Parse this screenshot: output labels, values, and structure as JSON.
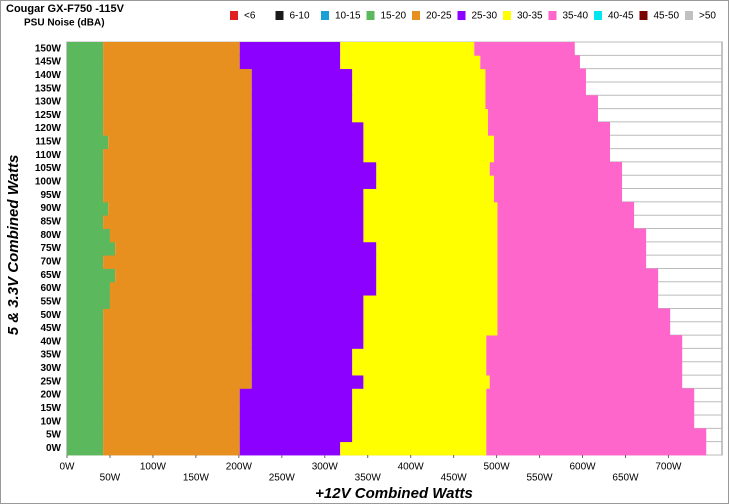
{
  "chart_data": {
    "type": "stacked-bar-horizontal",
    "title": "Cougar GX-F750 -115V",
    "subtitle": "PSU Noise (dBA)",
    "x_label": "+12V Combined Watts",
    "y_label": "5 & 3.3V Combined Watts",
    "categories": [
      "0W",
      "5W",
      "10W",
      "15W",
      "20W",
      "25W",
      "30W",
      "35W",
      "40W",
      "45W",
      "50W",
      "55W",
      "60W",
      "65W",
      "70W",
      "75W",
      "80W",
      "85W",
      "90W",
      "95W",
      "100W",
      "105W",
      "110W",
      "115W",
      "120W",
      "125W",
      "130W",
      "135W",
      "140W",
      "145W",
      "150W"
    ],
    "xlim": [
      0,
      760
    ],
    "xticks": [
      {
        "value": 0,
        "label": "0W"
      },
      {
        "value": 50,
        "label": "50W"
      },
      {
        "value": 100,
        "label": "100W"
      },
      {
        "value": 150,
        "label": "150W"
      },
      {
        "value": 200,
        "label": "200W"
      },
      {
        "value": 250,
        "label": "250W"
      },
      {
        "value": 300,
        "label": "300W"
      },
      {
        "value": 350,
        "label": "350W"
      },
      {
        "value": 400,
        "label": "400W"
      },
      {
        "value": 450,
        "label": "450W"
      },
      {
        "value": 500,
        "label": "500W"
      },
      {
        "value": 550,
        "label": "550W"
      },
      {
        "value": 600,
        "label": "600W"
      },
      {
        "value": 650,
        "label": "650W"
      },
      {
        "value": 700,
        "label": "700W"
      }
    ],
    "series": [
      {
        "name": "<6",
        "color": "#e02020",
        "values": [
          null,
          null,
          null,
          null,
          null,
          null,
          null,
          null,
          null,
          null,
          null,
          null,
          null,
          null,
          null,
          null,
          null,
          null,
          null,
          null,
          null,
          null,
          null,
          null,
          null,
          null,
          null,
          null,
          null,
          null,
          null
        ]
      },
      {
        "name": "6-10",
        "color": "#1a1a1a",
        "values": [
          null,
          null,
          null,
          null,
          null,
          null,
          null,
          null,
          null,
          null,
          null,
          null,
          null,
          null,
          null,
          null,
          null,
          null,
          null,
          null,
          null,
          null,
          null,
          null,
          null,
          null,
          null,
          null,
          null,
          null,
          null
        ]
      },
      {
        "name": "10-15",
        "color": "#1a9fd8",
        "values": [
          null,
          null,
          null,
          null,
          null,
          null,
          null,
          null,
          null,
          null,
          null,
          null,
          null,
          null,
          null,
          null,
          null,
          null,
          null,
          null,
          null,
          null,
          null,
          null,
          null,
          null,
          null,
          null,
          null,
          null,
          null
        ]
      },
      {
        "name": "15-20",
        "color": "#5cb85c",
        "values": [
          42,
          42,
          42,
          42,
          42,
          42,
          42,
          42,
          42,
          42,
          42,
          50,
          50,
          56,
          42,
          56,
          50,
          42,
          48,
          42,
          42,
          42,
          42,
          48,
          42,
          42,
          42,
          42,
          42,
          42,
          42
        ]
      },
      {
        "name": "20-25",
        "color": "#e8901f",
        "values": [
          159,
          159,
          159,
          159,
          159,
          173,
          173,
          173,
          173,
          173,
          173,
          165,
          165,
          159,
          173,
          159,
          165,
          173,
          167,
          173,
          173,
          173,
          173,
          167,
          173,
          173,
          173,
          173,
          173,
          159,
          159
        ]
      },
      {
        "name": "25-30",
        "color": "#8b00ff",
        "values": [
          117,
          131,
          131,
          131,
          131,
          130,
          117,
          117,
          130,
          130,
          130,
          130,
          145,
          145,
          145,
          145,
          130,
          130,
          130,
          130,
          145,
          145,
          130,
          130,
          130,
          117,
          117,
          117,
          117,
          117,
          117
        ]
      },
      {
        "name": "30-35",
        "color": "#ffff00",
        "values": [
          170,
          156,
          156,
          156,
          156,
          147,
          156,
          156,
          143,
          156,
          156,
          156,
          141,
          141,
          141,
          141,
          156,
          156,
          156,
          152,
          137,
          132,
          152,
          152,
          145,
          158,
          155,
          155,
          155,
          163,
          156
        ]
      },
      {
        "name": "35-40",
        "color": "#ff66cc",
        "values": [
          256,
          256,
          242,
          242,
          242,
          224,
          228,
          228,
          228,
          201,
          201,
          187,
          187,
          187,
          173,
          173,
          173,
          159,
          159,
          149,
          149,
          154,
          135,
          135,
          142,
          128,
          131,
          117,
          117,
          116,
          117
        ]
      },
      {
        "name": "40-45",
        "color": "#00e5ee",
        "values": [
          null,
          null,
          null,
          null,
          null,
          null,
          null,
          null,
          null,
          null,
          null,
          null,
          null,
          null,
          null,
          null,
          null,
          null,
          null,
          null,
          null,
          null,
          null,
          null,
          null,
          null,
          null,
          null,
          null,
          null,
          null
        ]
      },
      {
        "name": "45-50",
        "color": "#7b0000",
        "values": [
          null,
          null,
          null,
          null,
          null,
          null,
          null,
          null,
          null,
          null,
          null,
          null,
          null,
          null,
          null,
          null,
          null,
          null,
          null,
          null,
          null,
          null,
          null,
          null,
          null,
          null,
          null,
          null,
          null,
          null,
          null
        ]
      },
      {
        "name": ">50",
        "color": "#c0c0c0",
        "values": [
          null,
          null,
          null,
          null,
          null,
          null,
          null,
          null,
          null,
          null,
          null,
          null,
          null,
          null,
          null,
          null,
          null,
          null,
          null,
          null,
          null,
          null,
          null,
          null,
          null,
          null,
          null,
          null,
          null,
          null,
          null
        ]
      }
    ]
  }
}
